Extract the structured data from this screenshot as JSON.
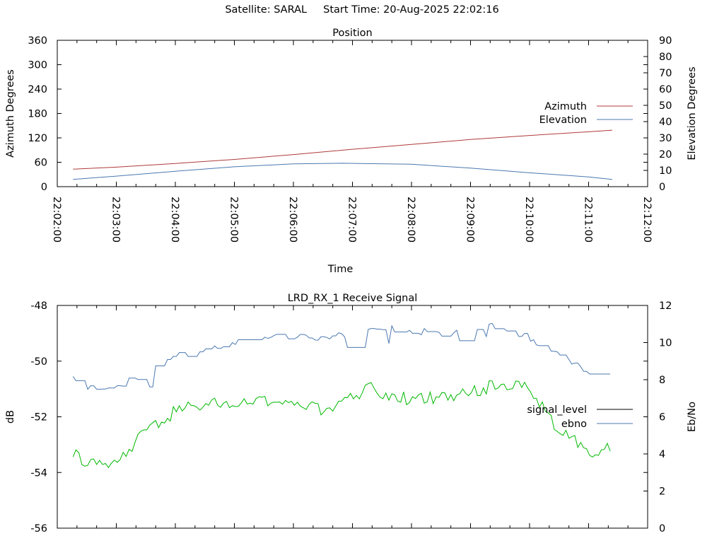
{
  "header": {
    "satellite_label": "Satellite: SARAL",
    "start_label": "Start Time: 20-Aug-2025 22:02:16"
  },
  "colors": {
    "azimuth": "#b03a3a",
    "elevation": "#4a78b0",
    "signal_level": "#000000",
    "ebno_curve": "#00b800",
    "ebno_legend": "#4a78b0"
  },
  "chart_data": [
    {
      "type": "line",
      "title": "Position",
      "xlabel": "Time",
      "ylabel": "Azimuth Degrees",
      "y2label": "Elevation Degrees",
      "xlim": [
        "22:02:00",
        "22:12:00"
      ],
      "ylim": [
        0,
        360
      ],
      "y2lim": [
        0,
        90
      ],
      "x_ticks": [
        "22:02:00",
        "22:03:00",
        "22:04:00",
        "22:05:00",
        "22:06:00",
        "22:07:00",
        "22:08:00",
        "22:09:00",
        "22:10:00",
        "22:11:00",
        "22:12:00"
      ],
      "y_ticks": [
        "0",
        "60",
        "120",
        "180",
        "240",
        "300",
        "360"
      ],
      "y2_ticks": [
        "0",
        "10",
        "20",
        "30",
        "40",
        "50",
        "60",
        "70",
        "80",
        "90"
      ],
      "legend_position": "right",
      "series": [
        {
          "name": "Azimuth",
          "axis": "left",
          "x": [
            "22:02:16",
            "22:03:00",
            "22:04:00",
            "22:05:00",
            "22:06:00",
            "22:07:00",
            "22:08:00",
            "22:09:00",
            "22:10:00",
            "22:11:00",
            "22:11:24"
          ],
          "values": [
            43,
            48,
            57,
            67,
            79,
            92,
            104,
            116,
            126,
            135,
            139
          ]
        },
        {
          "name": "Elevation",
          "axis": "right",
          "x": [
            "22:02:16",
            "22:03:00",
            "22:04:00",
            "22:05:00",
            "22:06:00",
            "22:06:50",
            "22:08:00",
            "22:09:00",
            "22:10:00",
            "22:11:00",
            "22:11:24"
          ],
          "values": [
            4.5,
            6.5,
            9.5,
            12.2,
            14,
            14.4,
            13.8,
            11.4,
            8.5,
            6.0,
            4.5
          ]
        }
      ]
    },
    {
      "type": "line",
      "title": "LRD_RX_1 Receive Signal",
      "xlabel": "",
      "ylabel": "dB",
      "y2label": "Eb/No",
      "xlim": [
        "22:02:00",
        "22:12:00"
      ],
      "ylim": [
        -56,
        -48
      ],
      "y2lim": [
        0,
        12
      ],
      "y_ticks": [
        "-56",
        "-54",
        "-52",
        "-50",
        "-48"
      ],
      "y2_ticks": [
        "0",
        "2",
        "4",
        "6",
        "8",
        "10",
        "12"
      ],
      "legend_position": "right",
      "series": [
        {
          "name": "signal_level",
          "axis": "left",
          "x": [
            "22:02:16",
            "22:02:30",
            "22:02:45",
            "22:03:00",
            "22:03:30",
            "22:04:00",
            "22:04:30",
            "22:05:00",
            "22:05:30",
            "22:06:00",
            "22:06:30",
            "22:07:00",
            "22:07:15",
            "22:07:30",
            "22:08:00",
            "22:08:30",
            "22:09:00",
            "22:09:30",
            "22:10:00",
            "22:10:30",
            "22:11:00",
            "22:11:24"
          ],
          "values": [
            -50.6,
            -50.9,
            -51.0,
            -50.9,
            -50.5,
            -49.8,
            -49.6,
            -49.3,
            -49.2,
            -49.1,
            -49.2,
            -49.0,
            -48.9,
            -48.8,
            -48.9,
            -49.0,
            -48.9,
            -48.7,
            -49.2,
            -49.8,
            -50.4,
            -51.1
          ]
        },
        {
          "name": "ebno",
          "axis": "right",
          "x": [
            "22:02:16",
            "22:02:30",
            "22:02:45",
            "22:03:00",
            "22:03:15",
            "22:03:30",
            "22:03:45",
            "22:04:00",
            "22:04:30",
            "22:05:00",
            "22:05:30",
            "22:06:00",
            "22:06:30",
            "22:07:00",
            "22:07:15",
            "22:07:30",
            "22:08:00",
            "22:08:30",
            "22:09:00",
            "22:09:30",
            "22:10:00",
            "22:10:20",
            "22:10:40",
            "22:11:00",
            "22:11:24"
          ],
          "values": [
            4.0,
            3.6,
            3.3,
            3.5,
            4.3,
            5.2,
            5.7,
            6.3,
            6.7,
            6.7,
            6.8,
            6.8,
            6.3,
            7.0,
            7.6,
            7.3,
            6.9,
            7.1,
            7.3,
            7.8,
            7.6,
            5.9,
            5.0,
            4.1,
            4.5
          ]
        }
      ]
    }
  ]
}
